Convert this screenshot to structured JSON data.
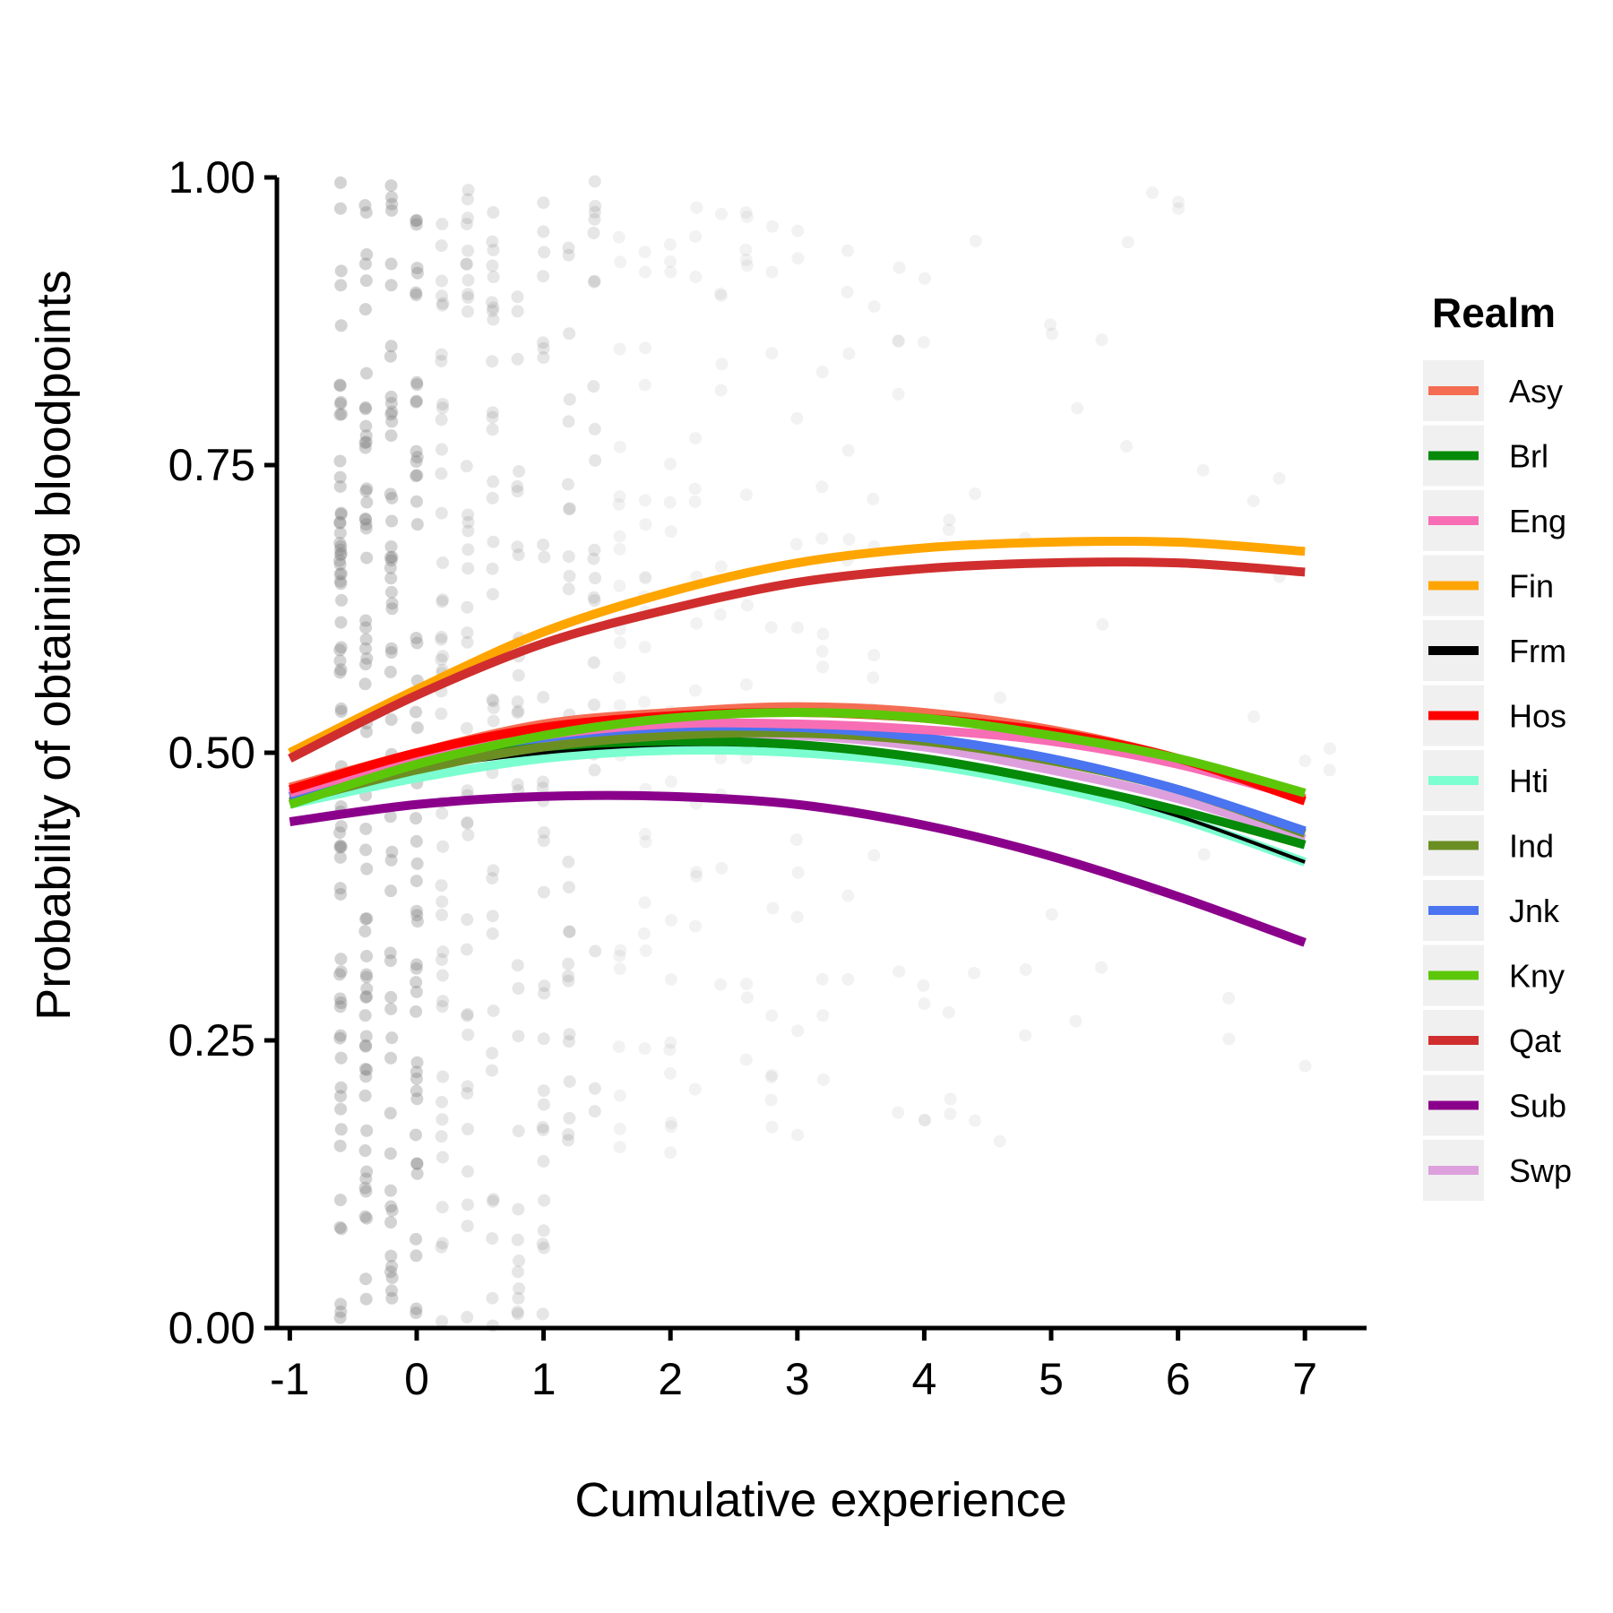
{
  "chart_data": {
    "type": "line",
    "xlabel": "Cumulative experience",
    "ylabel": "Probability of obtaining bloodpoints",
    "xlim": [
      -1.1,
      7.5
    ],
    "ylim": [
      0,
      1
    ],
    "x_ticks": [
      "-1",
      "0",
      "1",
      "2",
      "3",
      "4",
      "5",
      "6",
      "7"
    ],
    "y_ticks": [
      "0.00",
      "0.25",
      "0.50",
      "0.75",
      "1.00"
    ],
    "grid": false,
    "legend": {
      "title": "Realm",
      "position": "right"
    },
    "series": [
      {
        "name": "Asy",
        "color": "#F46D53",
        "x": [
          -1,
          0,
          1,
          2,
          3,
          4,
          5,
          6,
          7
        ],
        "y": [
          0.47,
          0.5,
          0.525,
          0.535,
          0.54,
          0.535,
          0.52,
          0.495,
          0.46
        ]
      },
      {
        "name": "Brl",
        "color": "#068A09",
        "x": [
          -1,
          0,
          1,
          2,
          3,
          4,
          5,
          6,
          7
        ],
        "y": [
          0.462,
          0.49,
          0.505,
          0.51,
          0.507,
          0.495,
          0.475,
          0.45,
          0.42
        ]
      },
      {
        "name": "Eng",
        "color": "#F76EB5",
        "x": [
          -1,
          0,
          1,
          2,
          3,
          4,
          5,
          6,
          7
        ],
        "y": [
          0.465,
          0.495,
          0.515,
          0.525,
          0.525,
          0.52,
          0.51,
          0.49,
          0.46
        ]
      },
      {
        "name": "Fin",
        "color": "#FFA500",
        "x": [
          -1,
          0,
          1,
          2,
          3,
          4,
          5,
          6,
          7
        ],
        "y": [
          0.5,
          0.555,
          0.605,
          0.64,
          0.665,
          0.678,
          0.683,
          0.683,
          0.675
        ]
      },
      {
        "name": "Frm",
        "color": "#000000",
        "x": [
          -1,
          0,
          1,
          2,
          3,
          4,
          5,
          6,
          7
        ],
        "y": [
          0.46,
          0.485,
          0.5,
          0.507,
          0.505,
          0.495,
          0.475,
          0.445,
          0.405
        ]
      },
      {
        "name": "Hos",
        "color": "#FF0000",
        "x": [
          -1,
          0,
          1,
          2,
          3,
          4,
          5,
          6,
          7
        ],
        "y": [
          0.468,
          0.5,
          0.522,
          0.532,
          0.535,
          0.53,
          0.518,
          0.495,
          0.458
        ]
      },
      {
        "name": "Hti",
        "color": "#7CFFD0",
        "x": [
          -1,
          0,
          1,
          2,
          3,
          4,
          5,
          6,
          7
        ],
        "y": [
          0.455,
          0.478,
          0.495,
          0.502,
          0.5,
          0.49,
          0.47,
          0.443,
          0.405
        ]
      },
      {
        "name": "Ind",
        "color": "#6B8E23",
        "x": [
          -1,
          0,
          1,
          2,
          3,
          4,
          5,
          6,
          7
        ],
        "y": [
          0.457,
          0.485,
          0.505,
          0.515,
          0.517,
          0.51,
          0.493,
          0.468,
          0.43
        ]
      },
      {
        "name": "Jnk",
        "color": "#4A74F0",
        "x": [
          -1,
          0,
          1,
          2,
          3,
          4,
          5,
          6,
          7
        ],
        "y": [
          0.462,
          0.495,
          0.513,
          0.522,
          0.522,
          0.513,
          0.495,
          0.468,
          0.432
        ]
      },
      {
        "name": "Kny",
        "color": "#5CC709",
        "x": [
          -1,
          0,
          1,
          2,
          3,
          4,
          5,
          6,
          7
        ],
        "y": [
          0.455,
          0.49,
          0.515,
          0.53,
          0.535,
          0.53,
          0.515,
          0.495,
          0.465
        ]
      },
      {
        "name": "Qat",
        "color": "#D02E2E",
        "x": [
          -1,
          0,
          1,
          2,
          3,
          4,
          5,
          6,
          7
        ],
        "y": [
          0.495,
          0.55,
          0.595,
          0.625,
          0.648,
          0.66,
          0.665,
          0.665,
          0.657
        ]
      },
      {
        "name": "Sub",
        "color": "#8B008B",
        "x": [
          -1,
          0,
          1,
          2,
          3,
          4,
          5,
          6,
          7
        ],
        "y": [
          0.44,
          0.455,
          0.462,
          0.462,
          0.455,
          0.437,
          0.41,
          0.375,
          0.335
        ]
      },
      {
        "name": "Swp",
        "color": "#DDA0DD",
        "x": [
          -1,
          0,
          1,
          2,
          3,
          4,
          5,
          6,
          7
        ],
        "y": [
          0.463,
          0.49,
          0.507,
          0.515,
          0.515,
          0.505,
          0.485,
          0.46,
          0.425
        ]
      }
    ],
    "points_color": "#808080"
  }
}
